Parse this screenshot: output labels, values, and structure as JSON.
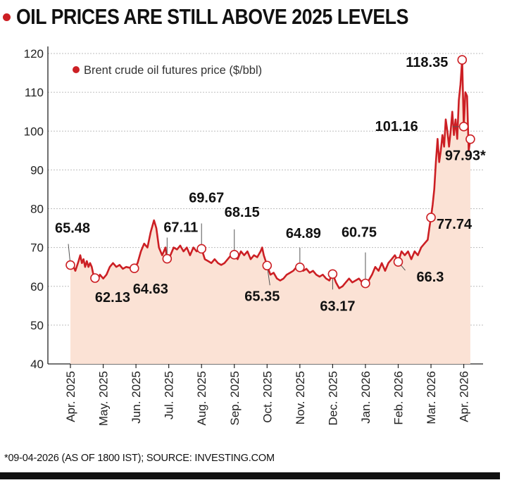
{
  "title": "OIL PRICES ARE STILL ABOVE 2025 LEVELS",
  "footnote": "*09-04-2026 (AS OF 1800 IST); SOURCE: INVESTING.COM",
  "colors": {
    "accent": "#cc1f24",
    "fill": "#fbe2d5",
    "grid": "#bdbdbd",
    "text": "#111111"
  },
  "chart_data": {
    "type": "area",
    "title": "OIL PRICES ARE STILL ABOVE 2025 LEVELS",
    "xlabel": "",
    "ylabel": "",
    "ylim": [
      40,
      120
    ],
    "yticks": [
      40,
      50,
      60,
      70,
      80,
      90,
      100,
      110,
      120
    ],
    "grid": true,
    "legend_position": "top-left",
    "x_tick_labels": [
      "Apr. 2025",
      "May. 2025",
      "Jun. 2025",
      "Jul. 2025",
      "Aug. 2025",
      "Sep. 2025",
      "Oct. 2025",
      "Nov. 2025",
      "Dec. 2025",
      "Jan. 2026",
      "Feb. 2026",
      "Mar. 2026",
      "Apr. 2026"
    ],
    "series": [
      {
        "name": "Brent crude oil futures price ($/bbl)",
        "values": [
          [
            0,
            65.5
          ],
          [
            0.1,
            65
          ],
          [
            0.15,
            64
          ],
          [
            0.25,
            66.5
          ],
          [
            0.3,
            68
          ],
          [
            0.35,
            66
          ],
          [
            0.4,
            67
          ],
          [
            0.45,
            65
          ],
          [
            0.5,
            66.5
          ],
          [
            0.55,
            65
          ],
          [
            0.6,
            66
          ],
          [
            0.65,
            65
          ],
          [
            0.7,
            63
          ],
          [
            0.75,
            62.1
          ],
          [
            0.8,
            61.5
          ],
          [
            0.85,
            62
          ],
          [
            0.9,
            63
          ],
          [
            1.0,
            62
          ],
          [
            1.1,
            63
          ],
          [
            1.2,
            65
          ],
          [
            1.3,
            66
          ],
          [
            1.4,
            65
          ],
          [
            1.5,
            65.5
          ],
          [
            1.6,
            64.5
          ],
          [
            1.7,
            65
          ],
          [
            1.8,
            64.8
          ],
          [
            1.95,
            64.6
          ],
          [
            2.05,
            66
          ],
          [
            2.15,
            69
          ],
          [
            2.25,
            71
          ],
          [
            2.35,
            70
          ],
          [
            2.45,
            74
          ],
          [
            2.55,
            77
          ],
          [
            2.62,
            75
          ],
          [
            2.7,
            70
          ],
          [
            2.8,
            68
          ],
          [
            2.9,
            70
          ],
          [
            2.95,
            67.1
          ],
          [
            3.05,
            68
          ],
          [
            3.15,
            70
          ],
          [
            3.25,
            69.5
          ],
          [
            3.35,
            70.5
          ],
          [
            3.45,
            69
          ],
          [
            3.55,
            70
          ],
          [
            3.65,
            68
          ],
          [
            3.75,
            70
          ],
          [
            3.85,
            69
          ],
          [
            3.95,
            69.5
          ],
          [
            4.0,
            69.7
          ],
          [
            4.1,
            67
          ],
          [
            4.2,
            66.5
          ],
          [
            4.3,
            66
          ],
          [
            4.4,
            67
          ],
          [
            4.5,
            66
          ],
          [
            4.6,
            65.5
          ],
          [
            4.7,
            66
          ],
          [
            4.8,
            67
          ],
          [
            4.9,
            68
          ],
          [
            5.0,
            68.2
          ],
          [
            5.1,
            67
          ],
          [
            5.2,
            69
          ],
          [
            5.3,
            68
          ],
          [
            5.4,
            69
          ],
          [
            5.5,
            67
          ],
          [
            5.6,
            68
          ],
          [
            5.7,
            67.5
          ],
          [
            5.8,
            69
          ],
          [
            5.85,
            70
          ],
          [
            5.9,
            68
          ],
          [
            6.0,
            65.4
          ],
          [
            6.1,
            63
          ],
          [
            6.2,
            63.5
          ],
          [
            6.3,
            62
          ],
          [
            6.4,
            61.5
          ],
          [
            6.5,
            62
          ],
          [
            6.6,
            63
          ],
          [
            6.7,
            63.5
          ],
          [
            6.8,
            64
          ],
          [
            6.9,
            65
          ],
          [
            7.0,
            64.9
          ],
          [
            7.1,
            64
          ],
          [
            7.2,
            64.5
          ],
          [
            7.3,
            63.5
          ],
          [
            7.4,
            64
          ],
          [
            7.5,
            63
          ],
          [
            7.6,
            62.5
          ],
          [
            7.7,
            63
          ],
          [
            7.8,
            62
          ],
          [
            7.9,
            61.5
          ],
          [
            8.0,
            63.2
          ],
          [
            8.1,
            61
          ],
          [
            8.2,
            59.5
          ],
          [
            8.3,
            60
          ],
          [
            8.4,
            61
          ],
          [
            8.5,
            62
          ],
          [
            8.6,
            61
          ],
          [
            8.7,
            61.5
          ],
          [
            8.8,
            62
          ],
          [
            8.9,
            61
          ],
          [
            9.0,
            60.8
          ],
          [
            9.1,
            61.5
          ],
          [
            9.2,
            63
          ],
          [
            9.3,
            65
          ],
          [
            9.4,
            64
          ],
          [
            9.5,
            66
          ],
          [
            9.6,
            64
          ],
          [
            9.7,
            66
          ],
          [
            9.8,
            67
          ],
          [
            9.9,
            68
          ],
          [
            10.0,
            66.3
          ],
          [
            10.1,
            69
          ],
          [
            10.2,
            68
          ],
          [
            10.3,
            69
          ],
          [
            10.4,
            67
          ],
          [
            10.5,
            69
          ],
          [
            10.6,
            68
          ],
          [
            10.7,
            70
          ],
          [
            10.8,
            71
          ],
          [
            10.9,
            72
          ],
          [
            10.95,
            75
          ],
          [
            11.0,
            77.7
          ],
          [
            11.05,
            81
          ],
          [
            11.1,
            85
          ],
          [
            11.15,
            92
          ],
          [
            11.2,
            98
          ],
          [
            11.25,
            92
          ],
          [
            11.3,
            95
          ],
          [
            11.35,
            99
          ],
          [
            11.4,
            96
          ],
          [
            11.45,
            103
          ],
          [
            11.5,
            100
          ],
          [
            11.55,
            96
          ],
          [
            11.6,
            100
          ],
          [
            11.65,
            105
          ],
          [
            11.7,
            99
          ],
          [
            11.75,
            103
          ],
          [
            11.8,
            98
          ],
          [
            11.85,
            108
          ],
          [
            11.9,
            112
          ],
          [
            11.95,
            118.4
          ],
          [
            12.0,
            101.2
          ],
          [
            12.05,
            110
          ],
          [
            12.1,
            109
          ],
          [
            12.15,
            95
          ],
          [
            12.2,
            97.9
          ]
        ]
      }
    ],
    "labeled_points": [
      {
        "x": 0.0,
        "y": 65.48,
        "label": "65.48"
      },
      {
        "x": 0.75,
        "y": 62.13,
        "label": "62.13"
      },
      {
        "x": 1.95,
        "y": 64.63,
        "label": "64.63"
      },
      {
        "x": 2.95,
        "y": 67.11,
        "label": "67.11"
      },
      {
        "x": 4.0,
        "y": 69.67,
        "label": "69.67"
      },
      {
        "x": 5.0,
        "y": 68.15,
        "label": "68.15"
      },
      {
        "x": 6.0,
        "y": 65.35,
        "label": "65.35"
      },
      {
        "x": 7.0,
        "y": 64.89,
        "label": "64.89"
      },
      {
        "x": 8.0,
        "y": 63.17,
        "label": "63.17"
      },
      {
        "x": 9.0,
        "y": 60.75,
        "label": "60.75"
      },
      {
        "x": 10.0,
        "y": 66.3,
        "label": "66.3"
      },
      {
        "x": 11.0,
        "y": 77.74,
        "label": "77.74"
      },
      {
        "x": 11.95,
        "y": 118.35,
        "label": "118.35"
      },
      {
        "x": 12.0,
        "y": 101.16,
        "label": "101.16"
      },
      {
        "x": 12.2,
        "y": 97.93,
        "label": "97.93*"
      }
    ]
  }
}
